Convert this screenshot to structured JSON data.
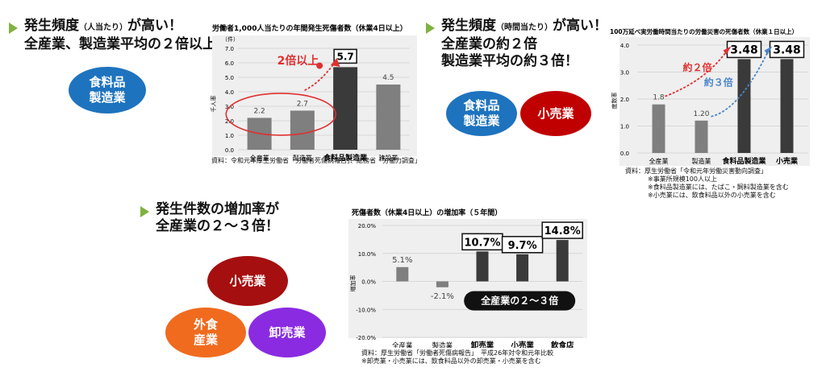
{
  "section1": {
    "headline_main": "発生頻度",
    "headline_small": "（人当たり）",
    "headline_tail": "が高い！",
    "headline_line2": "全産業、製造業平均の２倍以上",
    "oval_label": "食料品\n製造業",
    "colors": {
      "oval": "#1e73be"
    }
  },
  "section2": {
    "headline_main": "発生頻度",
    "headline_small": "（時間当たり）",
    "headline_tail": "が高い！",
    "headline_line2": "全産業の約２倍",
    "headline_line3": "製造業平均の約３倍！",
    "oval1_label": "食料品\n製造業",
    "oval2_label": "小売業",
    "colors": {
      "oval1": "#1e73be",
      "oval2": "#c00000"
    }
  },
  "section3": {
    "headline_line1": "発生件数の増加率が",
    "headline_line2": "全産業の２～３倍！",
    "oval1_label": "小売業",
    "oval2_label": "外食\n産業",
    "oval3_label": "卸売業",
    "colors": {
      "oval1": "#a50f0f",
      "oval2": "#f06b1e",
      "oval3": "#8a2be2"
    }
  },
  "chart_data": [
    {
      "type": "bar",
      "title": "労働者1,000人当たりの年間発生死傷者数（休業4日以上）",
      "unit": "（件）",
      "ylabel": "千人率",
      "categories": [
        "全産業",
        "製造業",
        "食料品製造業",
        "建設業"
      ],
      "values": [
        2.2,
        2.7,
        5.7,
        4.5
      ],
      "value_labels": [
        "2.2",
        "2.7",
        "5.7",
        "4.5"
      ],
      "highlight_index": 2,
      "ylim": [
        0,
        7
      ],
      "yticks": [
        "0.0",
        "1.0",
        "2.0",
        "3.0",
        "4.0",
        "5.0",
        "6.0",
        "7.0"
      ],
      "annotation": "2倍以上",
      "source": "資料：令和元年厚生労働省「労働者死傷病報告」、総務省「労働力調査」",
      "colors": {
        "bar": "#7f7f7f",
        "highlight": "#3a3a3a",
        "annotation": "#e03030"
      }
    },
    {
      "type": "bar",
      "title": "100万延べ実労働時間当たりの労働災害の死傷者数（休業１日以上）",
      "ylabel": "度数率",
      "categories": [
        "全産業",
        "製造業",
        "食料品製造業",
        "小売業"
      ],
      "values": [
        1.8,
        1.2,
        3.48,
        3.48
      ],
      "value_labels": [
        "1.8",
        "1.20",
        "3.48",
        "3.48"
      ],
      "highlight_indices": [
        2,
        3
      ],
      "ylim": [
        0,
        4
      ],
      "yticks": [
        "0.0",
        "1.0",
        "2.0",
        "3.0",
        "4.0"
      ],
      "annotation_red": "約２倍",
      "annotation_blue": "約３倍",
      "source_lines": [
        "資料：厚生労働省「令和元年労働災害動向調査」",
        "※事業所規模100人以上",
        "※食料品製造業には、たばこ・飼料製造業を含む",
        "※小売業には、飲食料品以外の小売業を含む"
      ],
      "colors": {
        "bar": "#7f7f7f",
        "highlight": "#3a3a3a",
        "red": "#e03030",
        "blue": "#4a86c8"
      }
    },
    {
      "type": "bar",
      "title": "死傷者数（休業4日以上）の増加率（５年間）",
      "ylabel": "増加率",
      "categories": [
        "全産業",
        "製造業",
        "卸売業",
        "小売業",
        "飲食店"
      ],
      "values": [
        5.1,
        -2.1,
        10.7,
        9.7,
        14.8
      ],
      "value_labels": [
        "5.1%",
        "-2.1%",
        "10.7%",
        "9.7%",
        "14.8%"
      ],
      "highlight_indices": [
        2,
        3,
        4
      ],
      "ylim": [
        -20,
        20
      ],
      "yticks": [
        "-20.0%",
        "-10.0%",
        "0.0%",
        "10.0%",
        "20.0%"
      ],
      "badge": "全産業の２～３倍",
      "source_lines": [
        "資料：厚生労働省「労働者死傷病報告」　平成26年対令和元年比較",
        "※卸売業・小売業には、飲食料品以外の卸売業・小売業を含む"
      ],
      "colors": {
        "bar": "#7f7f7f",
        "highlight": "#3a3a3a"
      }
    }
  ]
}
